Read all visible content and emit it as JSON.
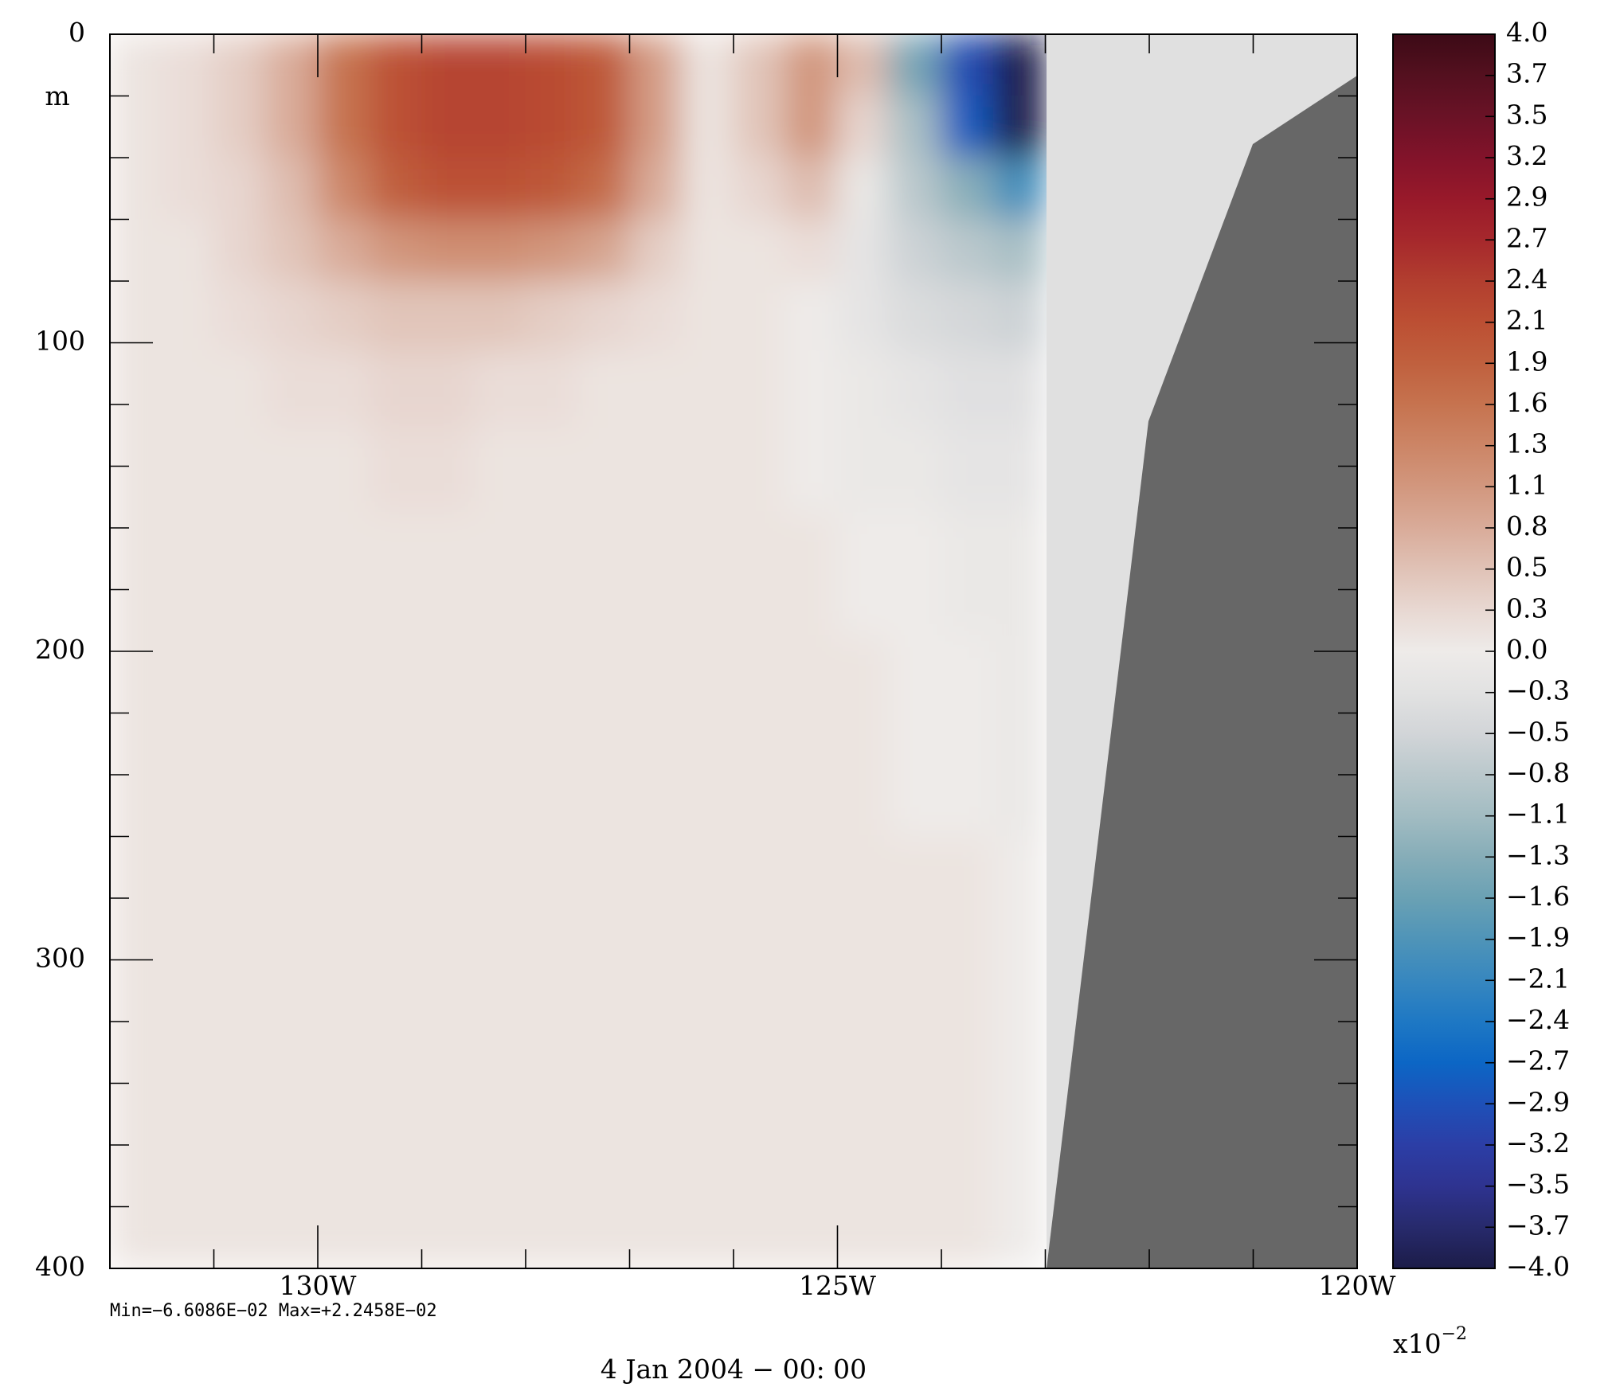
{
  "chart_data": {
    "type": "heatmap",
    "subtitle": "4 Jan 2004 − 00: 00",
    "annotation": "Min=−6.6086E−02  Max=+2.2458E−02",
    "ylabel": "m",
    "xlim": [
      -132,
      -120
    ],
    "xticks": [
      {
        "value": -130,
        "label": "130W"
      },
      {
        "value": -125,
        "label": "125W"
      },
      {
        "value": -120,
        "label": "120W"
      }
    ],
    "xminorticks": [
      -131,
      -129,
      -128,
      -127,
      -126,
      -124,
      -123,
      -122,
      -121
    ],
    "ylim": [
      0,
      400
    ],
    "yticks": [
      0,
      100,
      200,
      300,
      400
    ],
    "yminorticks": [
      20,
      40,
      60,
      80,
      120,
      140,
      160,
      180,
      220,
      240,
      260,
      280,
      320,
      340,
      360,
      380
    ],
    "x": [
      -131.75,
      -131.25,
      -130.75,
      -130.25,
      -129.75,
      -129.25,
      -128.75,
      -128.25,
      -127.75,
      -127.25,
      -126.75,
      -126.25,
      -125.75,
      -125.25,
      -124.75,
      -124.25,
      -123.75,
      -123.25
    ],
    "y": [
      10,
      30,
      50,
      70,
      90,
      115,
      140,
      170,
      220,
      300,
      370
    ],
    "z": [
      [
        0.1,
        0.2,
        0.4,
        0.8,
        1.6,
        2.1,
        2.3,
        2.3,
        2.2,
        2.0,
        1.0,
        0.1,
        0.5,
        1.1,
        0.6,
        -1.5,
        -3.0,
        -4.0
      ],
      [
        0.1,
        0.2,
        0.4,
        0.8,
        1.6,
        2.1,
        2.3,
        2.3,
        2.2,
        2.0,
        1.0,
        0.1,
        0.5,
        1.1,
        0.3,
        -1.0,
        -2.8,
        -4.0
      ],
      [
        0.1,
        0.2,
        0.3,
        0.6,
        1.3,
        1.9,
        2.1,
        2.1,
        2.0,
        1.7,
        0.8,
        0.1,
        0.3,
        0.6,
        -0.1,
        -0.8,
        -1.3,
        -2.0
      ],
      [
        0.1,
        0.1,
        0.3,
        0.5,
        0.8,
        1.1,
        1.2,
        1.2,
        1.1,
        0.9,
        0.4,
        0.1,
        0.1,
        0.2,
        -0.2,
        -0.6,
        -0.8,
        -1.0
      ],
      [
        0.1,
        0.1,
        0.2,
        0.3,
        0.4,
        0.5,
        0.5,
        0.5,
        0.4,
        0.3,
        0.2,
        0.1,
        0.1,
        0.0,
        -0.2,
        -0.4,
        -0.5,
        -0.6
      ],
      [
        0.1,
        0.1,
        0.1,
        0.2,
        0.2,
        0.3,
        0.3,
        0.2,
        0.2,
        0.1,
        0.1,
        0.1,
        0.1,
        0.0,
        -0.1,
        -0.2,
        -0.3,
        -0.3
      ],
      [
        0.1,
        0.1,
        0.1,
        0.1,
        0.1,
        0.2,
        0.2,
        0.1,
        0.1,
        0.1,
        0.1,
        0.1,
        0.1,
        0.0,
        -0.1,
        -0.1,
        -0.2,
        -0.2
      ],
      [
        0.1,
        0.1,
        0.1,
        0.1,
        0.1,
        0.1,
        0.1,
        0.1,
        0.1,
        0.1,
        0.1,
        0.1,
        0.1,
        0.1,
        0.0,
        0.0,
        -0.1,
        -0.1
      ],
      [
        0.1,
        0.1,
        0.1,
        0.1,
        0.1,
        0.1,
        0.1,
        0.1,
        0.1,
        0.1,
        0.1,
        0.1,
        0.1,
        0.1,
        0.1,
        0.0,
        0.0,
        -0.1
      ],
      [
        0.1,
        0.1,
        0.1,
        0.1,
        0.1,
        0.1,
        0.1,
        0.1,
        0.1,
        0.1,
        0.1,
        0.1,
        0.1,
        0.1,
        0.1,
        0.1,
        0.1,
        0.0
      ],
      [
        0.1,
        0.1,
        0.1,
        0.1,
        0.1,
        0.1,
        0.1,
        0.1,
        0.1,
        0.1,
        0.1,
        0.1,
        0.1,
        0.1,
        0.1,
        0.1,
        0.1,
        0.0
      ]
    ],
    "colorbar": {
      "clim": [
        -4,
        4
      ],
      "scale_base": "x10",
      "scale_exponent": "−2",
      "ticks": [
        {
          "value": 4,
          "label": "4.0"
        },
        {
          "value": 3.733,
          "label": "3.7"
        },
        {
          "value": 3.467,
          "label": "3.5"
        },
        {
          "value": 3.2,
          "label": "3.2"
        },
        {
          "value": 2.933,
          "label": "2.9"
        },
        {
          "value": 2.667,
          "label": "2.7"
        },
        {
          "value": 2.4,
          "label": "2.4"
        },
        {
          "value": 2.133,
          "label": "2.1"
        },
        {
          "value": 1.867,
          "label": "1.9"
        },
        {
          "value": 1.6,
          "label": "1.6"
        },
        {
          "value": 1.333,
          "label": "1.3"
        },
        {
          "value": 1.067,
          "label": "1.1"
        },
        {
          "value": 0.8,
          "label": "0.8"
        },
        {
          "value": 0.533,
          "label": "0.5"
        },
        {
          "value": 0.267,
          "label": "0.3"
        },
        {
          "value": 0,
          "label": "0.0"
        },
        {
          "value": -0.267,
          "label": "−0.3"
        },
        {
          "value": -0.533,
          "label": "−0.5"
        },
        {
          "value": -0.8,
          "label": "−0.8"
        },
        {
          "value": -1.067,
          "label": "−1.1"
        },
        {
          "value": -1.333,
          "label": "−1.3"
        },
        {
          "value": -1.6,
          "label": "−1.6"
        },
        {
          "value": -1.867,
          "label": "−1.9"
        },
        {
          "value": -2.133,
          "label": "−2.1"
        },
        {
          "value": -2.4,
          "label": "−2.4"
        },
        {
          "value": -2.667,
          "label": "−2.7"
        },
        {
          "value": -2.933,
          "label": "−2.9"
        },
        {
          "value": -3.2,
          "label": "−3.2"
        },
        {
          "value": -3.467,
          "label": "−3.5"
        },
        {
          "value": -3.733,
          "label": "−3.7"
        },
        {
          "value": -4,
          "label": "−4.0"
        }
      ],
      "colors": [
        "#3c0a16",
        "#54101f",
        "#6a1226",
        "#82132a",
        "#98192a",
        "#a6282c",
        "#b23e2f",
        "#bc4f33",
        "#c0603e",
        "#c6734f",
        "#cc8566",
        "#d2977e",
        "#d9ab99",
        "#e0c2b6",
        "#e8d8d2",
        "#eeebe9",
        "#e2e2e2",
        "#d2d5d8",
        "#bac8cc",
        "#a2bcc2",
        "#86adb8",
        "#6aa1b4",
        "#4f94b8",
        "#3787bf",
        "#1e78c4",
        "#0c66c5",
        "#1e50b8",
        "#2c3ea6",
        "#2e3390",
        "#272a6c",
        "#1c1c48"
      ]
    }
  }
}
